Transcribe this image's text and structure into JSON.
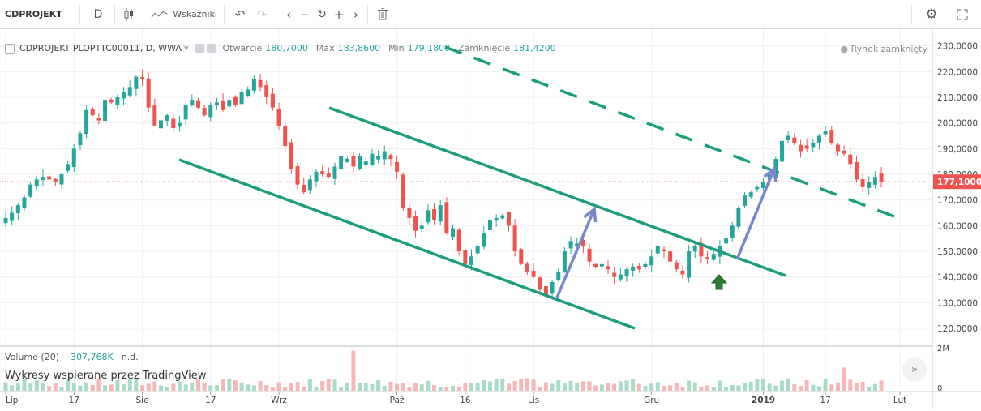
{
  "toolbar": {
    "symbol": "CDPROJEKT",
    "interval": "D",
    "indicators_label": "Wskaźniki"
  },
  "legend": {
    "title": "CDPROJEKT PLOPTTC00011, D, WWA",
    "open_label": "Otwarcie",
    "open_value": "180,7000",
    "high_label": "Max",
    "high_value": "183,8600",
    "low_label": "Min",
    "low_value": "179,1800",
    "close_label": "Zamknięcie",
    "close_value": "181,4200"
  },
  "market_status": "Rynek zamknięty",
  "last_price_label": "177,1000",
  "volume_legend": {
    "label": "Volume (20)",
    "value": "307,768K",
    "na": "n.d."
  },
  "powered_by": "Wykresy wspierane przez TradingView",
  "volume_axis": {
    "top_label": "2M",
    "bottom_label": "0"
  },
  "colors": {
    "up": "#26a69a",
    "down": "#ef5350",
    "channel": "#1a9e7e",
    "arrow": "#7986cb",
    "price_tag": "#ef5350"
  },
  "chart_data": {
    "type": "candlestick",
    "price_axis": {
      "ylim": [
        114000,
        234000
      ],
      "ticks": [
        "230,0000",
        "220,0000",
        "210,0000",
        "200,0000",
        "190,0000",
        "180,0000",
        "170,0000",
        "160,0000",
        "150,0000",
        "140,0000",
        "130,0000",
        "120,0000"
      ],
      "tick_values": [
        230000,
        220000,
        210000,
        200000,
        190000,
        180000,
        170000,
        160000,
        150000,
        140000,
        130000,
        120000
      ]
    },
    "time_axis": {
      "labels": [
        "Lip",
        "17",
        "Sie",
        "17",
        "Wrz",
        "Paź",
        "16",
        "Lis",
        "Gru",
        "2019",
        "17",
        "Lut"
      ],
      "label_bar_index": [
        0,
        11,
        22,
        33,
        44,
        63,
        74,
        85,
        104,
        122,
        132,
        144
      ]
    },
    "last_price": 177100,
    "grid": true,
    "closes": [
      163000,
      165000,
      168000,
      171000,
      176000,
      178000,
      179000,
      178000,
      177000,
      180000,
      184000,
      190000,
      196000,
      205000,
      203000,
      201000,
      209000,
      208000,
      210000,
      212000,
      214000,
      218000,
      217000,
      206000,
      199000,
      201000,
      203000,
      198000,
      200000,
      207000,
      209000,
      206000,
      203000,
      207000,
      208000,
      205000,
      209000,
      207000,
      212000,
      213000,
      217000,
      214000,
      210000,
      206000,
      199000,
      191000,
      182000,
      176000,
      173000,
      178000,
      181000,
      180000,
      179000,
      183000,
      187000,
      186000,
      183000,
      187000,
      185000,
      188000,
      187000,
      189000,
      186000,
      181000,
      167000,
      163000,
      158000,
      160000,
      166000,
      162000,
      168000,
      157000,
      159000,
      150000,
      145000,
      148000,
      152000,
      157000,
      162000,
      163000,
      164000,
      160000,
      150000,
      145000,
      142000,
      140000,
      135000,
      133000,
      138000,
      142000,
      150000,
      154000,
      153000,
      152000,
      146000,
      144000,
      145000,
      143000,
      140000,
      141000,
      143000,
      144000,
      143000,
      145000,
      148000,
      152000,
      150000,
      146000,
      143000,
      141000,
      150000,
      152000,
      148000,
      147000,
      149000,
      152000,
      155000,
      160000,
      167000,
      172000,
      173000,
      175000,
      177000,
      180000,
      186000,
      193000,
      195000,
      192000,
      189000,
      190000,
      192000,
      195000,
      197000,
      192000,
      189000,
      188000,
      184000,
      178000,
      175000,
      177000,
      179000,
      177100
    ]
  }
}
